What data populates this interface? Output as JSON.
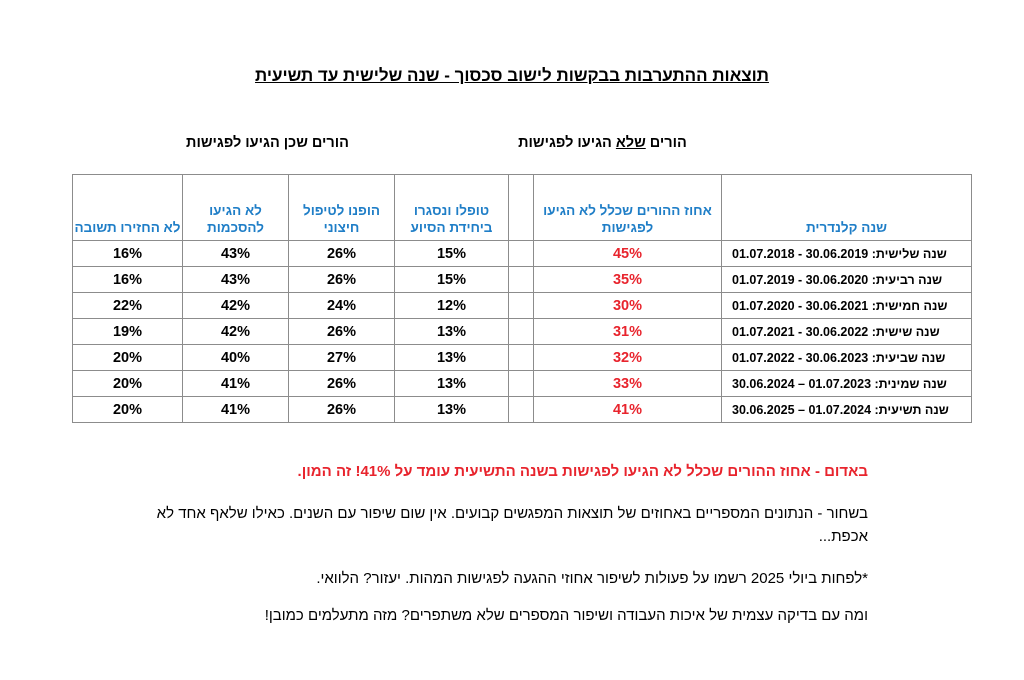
{
  "title": "תוצאות ההתערבות בבקשות לישוב סכסוך - שנה שלישית עד תשיעית",
  "groups": {
    "not_arrived_prefix": "הורים ",
    "not_arrived_underlined": "שלא",
    "not_arrived_suffix": " הגיעו לפגישות",
    "arrived": "הורים שכן הגיעו לפגישות"
  },
  "table": {
    "headers": {
      "year": "שנה קלנדרית",
      "pct_not_arrived": "אחוז ההורים שכלל לא הגיעו לפגישות",
      "treated_closed": "טופלו ונסגרו ביחידת הסיוע",
      "referred_external": "הופנו לטיפול חיצוני",
      "no_agreement": "לא הגיעו להסכמות",
      "no_response": "לא החזירו תשובה"
    },
    "rows": [
      {
        "year": "שנה שלישית: 30.06.2019 - 01.07.2018",
        "pct": "45%",
        "treated": "15%",
        "referred": "26%",
        "no_agreement": "43%",
        "no_response": "16%"
      },
      {
        "year": "שנה רביעית: 30.06.2020 - 01.07.2019",
        "pct": "35%",
        "treated": "15%",
        "referred": "26%",
        "no_agreement": "43%",
        "no_response": "16%"
      },
      {
        "year": "שנה חמישית: 30.06.2021 - 01.07.2020",
        "pct": "30%",
        "treated": "12%",
        "referred": "24%",
        "no_agreement": "42%",
        "no_response": "22%"
      },
      {
        "year": "שנה שישית: 30.06.2022 - 01.07.2021",
        "pct": "31%",
        "treated": "13%",
        "referred": "26%",
        "no_agreement": "42%",
        "no_response": "19%"
      },
      {
        "year": "שנה שביעית: 30.06.2023 - 01.07.2022",
        "pct": "32%",
        "treated": "13%",
        "referred": "27%",
        "no_agreement": "40%",
        "no_response": "20%"
      },
      {
        "year": "שנה שמינית: 01.07.2023 – 30.06.2024",
        "pct": "33%",
        "treated": "13%",
        "referred": "26%",
        "no_agreement": "41%",
        "no_response": "20%"
      },
      {
        "year": "שנה תשיעית: 01.07.2024 – 30.06.2025",
        "pct": "41%",
        "treated": "13%",
        "referred": "26%",
        "no_agreement": "41%",
        "no_response": "20%"
      }
    ]
  },
  "notes": {
    "red": "באדום - אחוז ההורים שכלל לא הגיעו לפגישות בשנה התשיעית עומד על 41%! זה המון.",
    "black": "בשחור - הנתונים המספריים באחוזים של תוצאות המפגשים קבועים. אין שום שיפור עם השנים. כאילו שלאף אחד לא אכפת...",
    "asterisk": "*לפחות ביולי 2025 רשמו על פעולות לשיפור אחוזי ההגעה לפגישות המהות. יעזור? הלוואי.",
    "last": "ומה עם בדיקה עצמית של איכות העבודה ושיפור המספרים שלא משתפרים? מזה מתעלמים כמובן!"
  },
  "colors": {
    "header_blue": "#1f7ec7",
    "highlight_red": "#e8242d",
    "border_gray": "#8c8c8c"
  }
}
